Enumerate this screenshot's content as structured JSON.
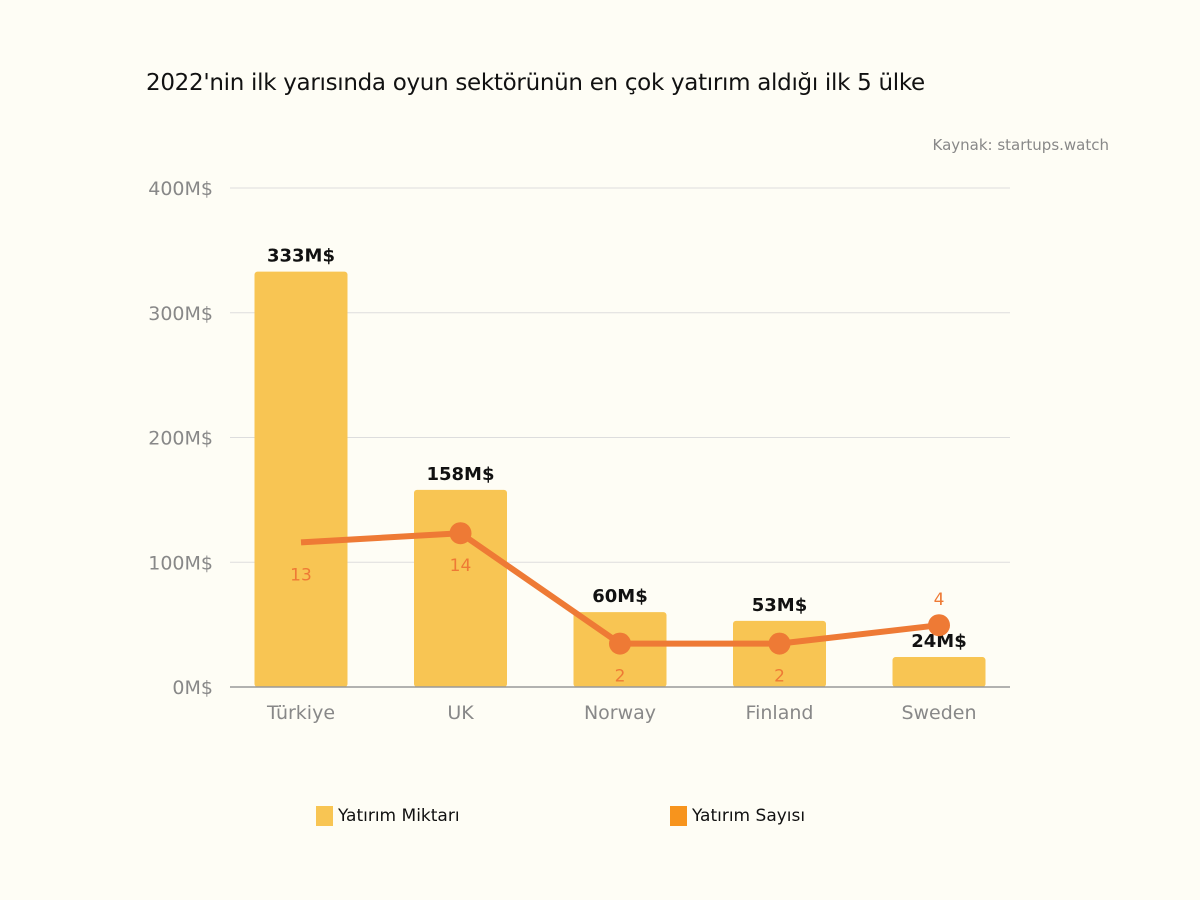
{
  "title": "2022'nin ilk yarısında oyun sektörünün en çok yatırım aldığı ilk 5 ülke",
  "source": "Kaynak: startups.watch",
  "colors": {
    "bar": "#F8C553",
    "line": "#EE7A35",
    "legend_line": "#F7941D",
    "grid": "#DDDDDD"
  },
  "chart_data": {
    "type": "bar+line",
    "title": "2022'nin ilk yarısında oyun sektörünün en çok yatırım aldığı ilk 5 ülke",
    "categories": [
      "Türkiye",
      "UK",
      "Norway",
      "Finland",
      "Sweden"
    ],
    "ylim": [
      0,
      400
    ],
    "yticks": [
      0,
      100,
      200,
      300,
      400
    ],
    "ytick_labels": [
      "0M$",
      "100M$",
      "200M$",
      "300M$",
      "400M$"
    ],
    "grid": true,
    "legend_placement": "bottom",
    "series": [
      {
        "name": "Yatırım Miktarı",
        "type": "bar",
        "values": [
          333,
          158,
          60,
          53,
          24
        ],
        "labels": [
          "333M$",
          "158M$",
          "60M$",
          "53M$",
          "24M$"
        ]
      },
      {
        "name": "Yatırım Sayısı",
        "type": "line",
        "values": [
          13,
          14,
          2,
          2,
          4
        ],
        "labels": [
          "13",
          "14",
          "2",
          "2",
          "4"
        ]
      }
    ]
  }
}
